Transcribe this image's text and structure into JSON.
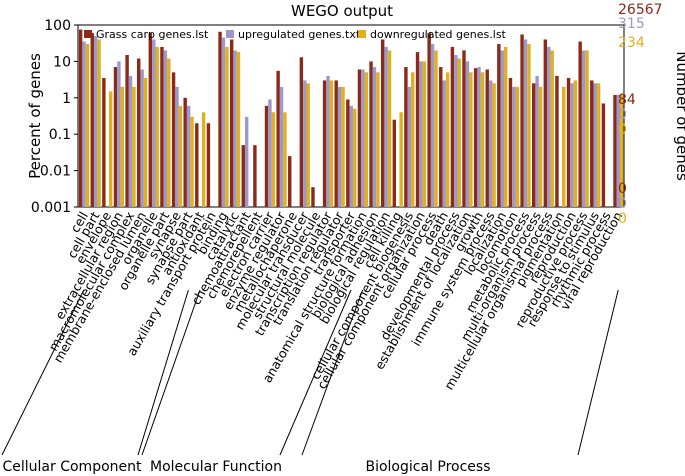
{
  "chart_data": {
    "type": "bar",
    "title": "WEGO output",
    "ylabel": "Percent of genes",
    "ylabel_right": "Number of genes",
    "yscale": "log",
    "ylim": [
      0.001,
      100
    ],
    "yticks": [
      "0.001",
      "0.01",
      "0.1",
      "1",
      "10",
      "100"
    ],
    "colors": [
      "#8b2a18",
      "#9d98c9",
      "#e0b020"
    ],
    "legend": [
      "Grass carp genes.lst",
      "upregulated genes.txt",
      "downregulated genes.lst"
    ],
    "right_axis": {
      "top": [
        "26567",
        "315",
        "234"
      ],
      "middle": [
        "84",
        "0",
        "0"
      ],
      "bottom": [
        "0",
        "0",
        "0"
      ]
    },
    "categories": [
      "cell",
      "cell part",
      "envelope",
      "extracellular region",
      "macromolecular complex",
      "membrane-enclosed lumen",
      "organelle",
      "organelle part",
      "synapse",
      "synapse part",
      "antioxidant",
      "auxiliary transport protein",
      "binding",
      "catalytic",
      "chemoattractant",
      "chemorepellent",
      "electron carrier",
      "enzyme regulator",
      "metallochaperone",
      "molecular transducer",
      "structural molecule",
      "transcription regulator",
      "translation regulator",
      "transporter",
      "anatomical structure formation",
      "biological adhesion",
      "biological regulation",
      "cell killing",
      "cellular component biogenesis",
      "cellular component organization",
      "cellular process",
      "death",
      "developmental process",
      "establishment of localization",
      "growth",
      "immune system process",
      "localization",
      "locomotion",
      "metabolic process",
      "multi-organism process",
      "multicellular organismal process",
      "pigmentation",
      "reproduction",
      "reproductive process",
      "response to stimulus",
      "rhythmic process",
      "viral reproduction"
    ],
    "series": [
      {
        "name": "Grass carp genes.lst",
        "values": [
          75,
          60,
          3.5,
          7,
          15,
          12,
          60,
          25,
          5,
          1,
          0.2,
          0.2,
          65,
          40,
          0.05,
          0.05,
          0.6,
          5.5,
          0.025,
          13,
          0.0035,
          3,
          3,
          0.9,
          6,
          10,
          40,
          0.25,
          7,
          18,
          60,
          7,
          25,
          20,
          6.5,
          6,
          30,
          3.5,
          55,
          2.5,
          40,
          4,
          3.5,
          35,
          3,
          0.7,
          1.2
        ]
      },
      {
        "name": "upregulated genes.txt",
        "values": [
          35,
          50,
          0,
          10,
          4,
          6,
          40,
          20,
          2,
          0.6,
          0,
          0,
          45,
          20,
          0.3,
          0,
          0.9,
          2,
          0,
          3,
          0,
          4,
          2,
          0.6,
          6,
          7,
          25,
          0,
          2,
          10,
          30,
          3,
          15,
          10,
          7,
          3,
          20,
          2,
          40,
          4,
          25,
          0,
          2.5,
          20,
          2.5,
          0,
          1.2
        ]
      },
      {
        "name": "downregulated genes.lst",
        "values": [
          30,
          40,
          1.5,
          2,
          2,
          3.5,
          25,
          12,
          0.6,
          0.3,
          0.4,
          0,
          25,
          18,
          0,
          0,
          0.4,
          0.4,
          0,
          2.5,
          0,
          3,
          2,
          0.5,
          5,
          5,
          20,
          0.4,
          5,
          10,
          20,
          5,
          12,
          5,
          5,
          2.5,
          25,
          2,
          30,
          2,
          20,
          2,
          3,
          20,
          2.5,
          0,
          1.2
        ]
      }
    ],
    "groups": [
      {
        "name": "Cellular Component",
        "range": [
          0,
          9
        ]
      },
      {
        "name": "Molecular Function",
        "range": [
          10,
          23
        ]
      },
      {
        "name": "Biological Process",
        "range": [
          24,
          46
        ]
      }
    ]
  }
}
